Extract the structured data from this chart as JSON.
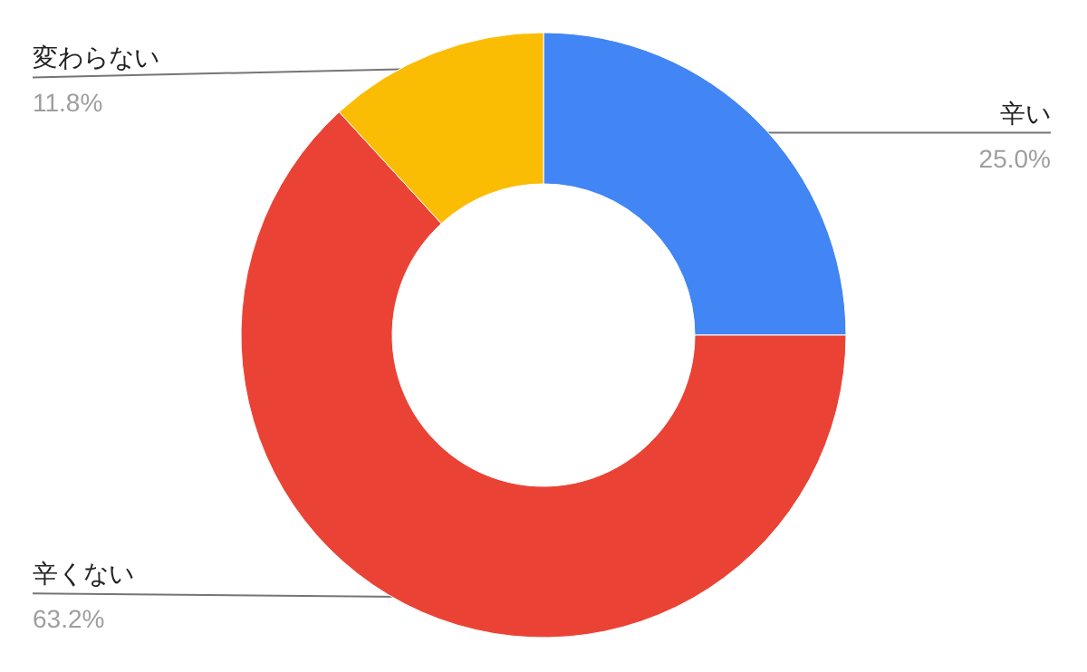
{
  "chart_data": {
    "type": "donut",
    "categories": [
      "辛い",
      "辛くない",
      "変わらない"
    ],
    "values": [
      25.0,
      63.2,
      11.8
    ],
    "value_labels": [
      "25.0%",
      "63.2%",
      "11.8%"
    ],
    "colors": [
      "#4285f4",
      "#ea4335",
      "#fbbc04"
    ],
    "legend": false
  }
}
